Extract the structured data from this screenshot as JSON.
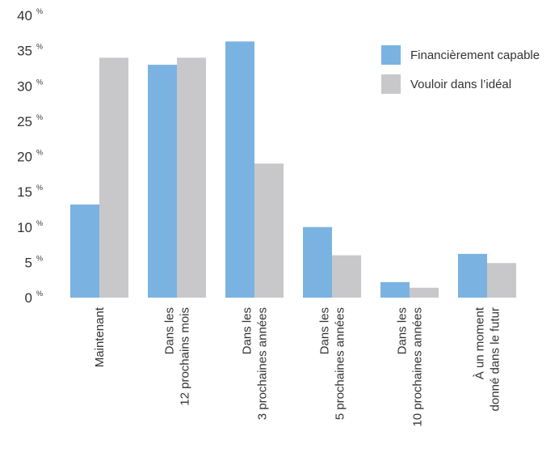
{
  "chart_data": {
    "type": "bar",
    "categories": [
      [
        "Maintenant"
      ],
      [
        "Dans les",
        "12 prochains mois"
      ],
      [
        "Dans les",
        "3 prochaines années"
      ],
      [
        "Dans les",
        "5 prochaines années"
      ],
      [
        "Dans les",
        "10 prochaines  années"
      ],
      [
        "À un moment",
        "donné dans le futur"
      ]
    ],
    "series": [
      {
        "name": "Financièrement capable",
        "color": "#7ab3e1",
        "values": [
          13.2,
          33,
          36.3,
          10,
          2.2,
          6.2
        ]
      },
      {
        "name": "Vouloir dans l’idéal",
        "color": "#c8c8ca",
        "values": [
          34,
          34,
          19,
          6,
          1.4,
          4.9
        ]
      }
    ],
    "yticks": [
      {
        "value": 0,
        "label": "0",
        "unit": "%"
      },
      {
        "value": 5,
        "label": "5",
        "unit": "%"
      },
      {
        "value": 10,
        "label": "10",
        "unit": "%"
      },
      {
        "value": 15,
        "label": "15",
        "unit": "%"
      },
      {
        "value": 20,
        "label": "20",
        "unit": "%"
      },
      {
        "value": 25,
        "label": "25",
        "unit": "%"
      },
      {
        "value": 30,
        "label": "30",
        "unit": "%"
      },
      {
        "value": 35,
        "label": "35",
        "unit": "%"
      },
      {
        "value": 40,
        "label": "40",
        "unit": "%"
      }
    ],
    "ylim": [
      0,
      40
    ],
    "title": "",
    "xlabel": "",
    "ylabel": "",
    "grid": false,
    "legend_position": "top-right"
  }
}
